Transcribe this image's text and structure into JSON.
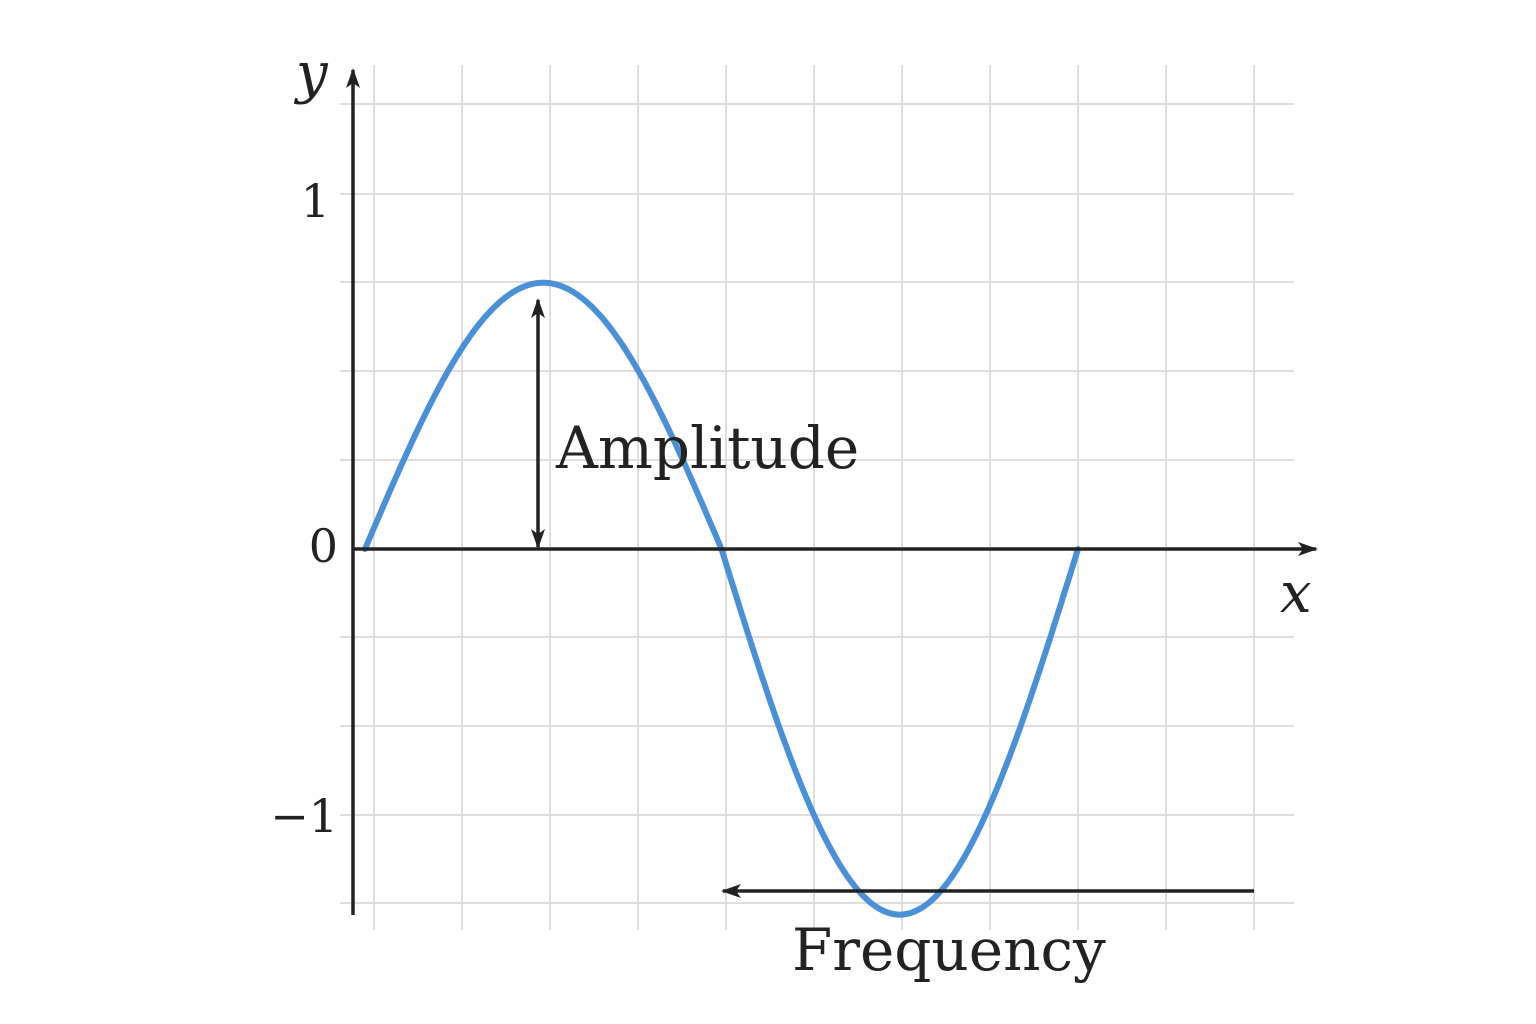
{
  "colors": {
    "background": "#ffffff",
    "grid": "#dedede",
    "axis": "#222222",
    "curve": "#4a90d9",
    "annotation": "#222222"
  },
  "labels": {
    "x_axis": "x",
    "y_axis": "y",
    "amplitude": "Amplitude",
    "frequency": "Frequency"
  },
  "ticks": {
    "y_one": "1",
    "y_zero": "0",
    "y_neg_one": "−1"
  },
  "curve": {
    "type": "sine",
    "amplitude_peak": 0.75,
    "amplitude_trough": -1.03,
    "cycles": 1
  },
  "annotations": {
    "amplitude_arrow": {
      "from_y": 0,
      "to_y": 0.75,
      "direction": "both"
    },
    "frequency_arrow": {
      "direction": "left"
    }
  }
}
